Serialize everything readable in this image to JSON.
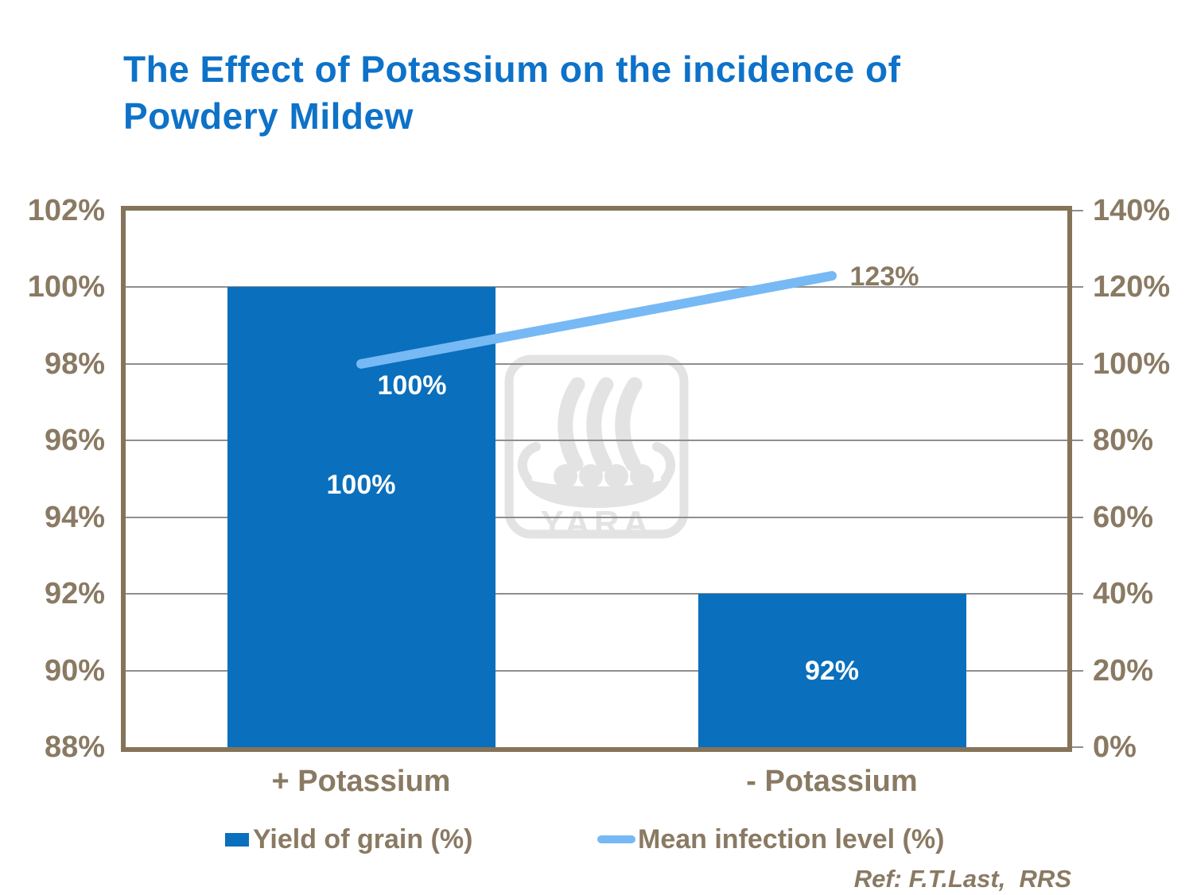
{
  "title": "The Effect of Potassium on the incidence of\nPowdery Mildew",
  "footnote": "Ref: F.T.Last,  RRS",
  "watermark": {
    "brand": "YARA"
  },
  "legend": {
    "items": [
      {
        "label": "Yield of grain (%)",
        "marker": "bar-swatch"
      },
      {
        "label": "Mean infection level (%)",
        "marker": "line-swatch"
      }
    ]
  },
  "colors": {
    "title_blue": "#0d72c8",
    "bar_blue": "#0a6fbc",
    "line_blue": "#76b9f4",
    "axis_brown": "#8a7a63",
    "border_brown": "#857459",
    "grid_gray": "#8f8f8f",
    "watermark_gray": "#e3e3e3",
    "label_white": "#ffffff"
  },
  "chart_data": {
    "type": "bar",
    "subtype": "combo-bar-line-dual-axis",
    "title": "The Effect of Potassium on the incidence of Powdery Mildew",
    "categories": [
      "+ Potassium",
      "- Potassium"
    ],
    "series": [
      {
        "name": "Yield of grain (%)",
        "type": "bar",
        "axis": "left",
        "values": [
          100,
          92
        ],
        "data_labels": [
          "100%",
          "92%"
        ],
        "color": "#0a6fbc"
      },
      {
        "name": "Mean infection level (%)",
        "type": "line",
        "axis": "right",
        "values": [
          100,
          123
        ],
        "data_labels": [
          "100%",
          "123%"
        ],
        "color": "#76b9f4"
      }
    ],
    "axis_left": {
      "min": 88,
      "max": 102,
      "step": 2,
      "tick_labels": [
        "102%",
        "100%",
        "98%",
        "96%",
        "94%",
        "92%",
        "90%",
        "88%"
      ]
    },
    "axis_right": {
      "min": 0,
      "max": 140,
      "step": 20,
      "tick_labels": [
        "140%",
        "120%",
        "100%",
        "80%",
        "60%",
        "40%",
        "20%",
        "0%"
      ]
    },
    "grid": "horizontal",
    "legend_position": "bottom"
  }
}
